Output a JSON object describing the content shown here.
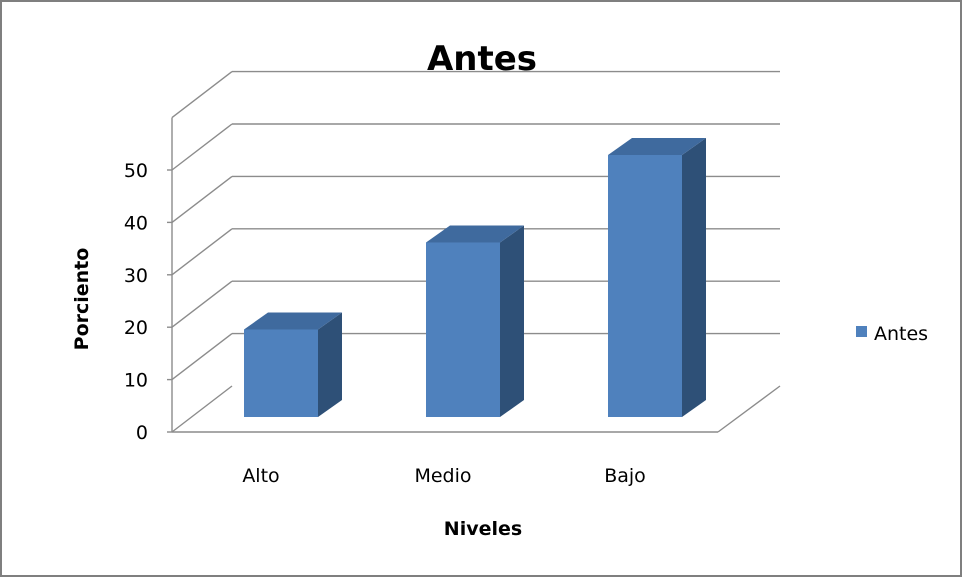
{
  "chart_data": {
    "type": "bar",
    "title": "Antes",
    "xlabel": "Niveles",
    "ylabel": "Porciento",
    "categories": [
      "Alto",
      "Medio",
      "Bajo"
    ],
    "series": [
      {
        "name": "Antes",
        "values": [
          16.7,
          33.3,
          50
        ]
      }
    ],
    "ylim": [
      0,
      50
    ],
    "yticks": [
      "0",
      "10",
      "20",
      "30",
      "40",
      "50"
    ],
    "grid": true,
    "legend_position": "right",
    "style": "3d-column",
    "colors": {
      "bar_front": "#4f81bd",
      "bar_side": "#2e5077",
      "bar_top": "#3f6a9e",
      "gridline": "#8c8c8c",
      "frame": "#7f7f7f"
    }
  }
}
